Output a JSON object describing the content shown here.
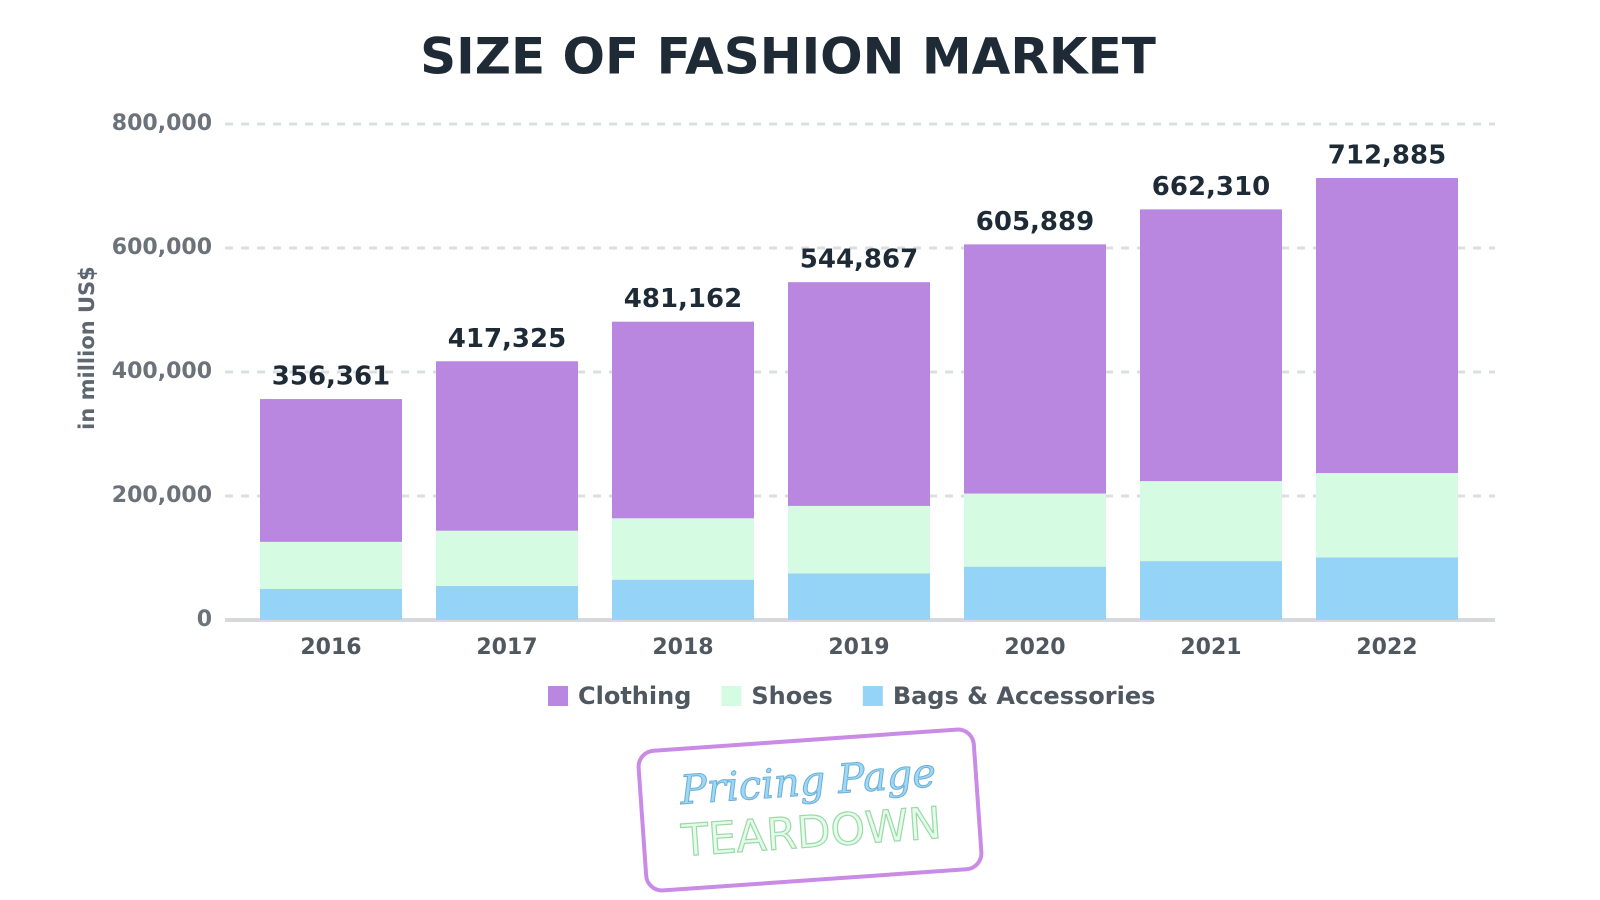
{
  "chart_data": {
    "type": "stacked_bar",
    "title": "SIZE OF FASHION MARKET",
    "y_label": "in million US$",
    "categories": [
      "2016",
      "2017",
      "2018",
      "2019",
      "2020",
      "2021",
      "2022"
    ],
    "series": [
      {
        "name": "Bags & Accessories",
        "color": "#95d3f7",
        "values": [
          50000,
          55000,
          65000,
          75000,
          86000,
          95000,
          101000
        ]
      },
      {
        "name": "Shoes",
        "color": "#d5fbe3",
        "values": [
          76000,
          89000,
          99000,
          109000,
          118000,
          129000,
          136000
        ]
      },
      {
        "name": "Clothing",
        "color": "#b987e0",
        "values": [
          230361,
          273325,
          317162,
          360867,
          401889,
          438310,
          475885
        ]
      }
    ],
    "totals": [
      356361,
      417325,
      481162,
      544867,
      605889,
      662310,
      712885
    ],
    "total_labels": [
      "356,361",
      "417,325",
      "481,162",
      "544,867",
      "605,889",
      "662,310",
      "712,885"
    ],
    "legend_order": [
      2,
      1,
      0
    ],
    "ylim": [
      0,
      800000
    ],
    "yticks": [
      0,
      {
        "value": 200000,
        "label": "200,000"
      },
      {
        "value": 400000,
        "label": "400,000"
      },
      {
        "value": 600000,
        "label": "600,000"
      },
      {
        "value": 800000,
        "label": "800,000"
      }
    ],
    "grid": true
  },
  "logo": {
    "line1": "Pricing Page",
    "line2": "TEARDOWN"
  }
}
